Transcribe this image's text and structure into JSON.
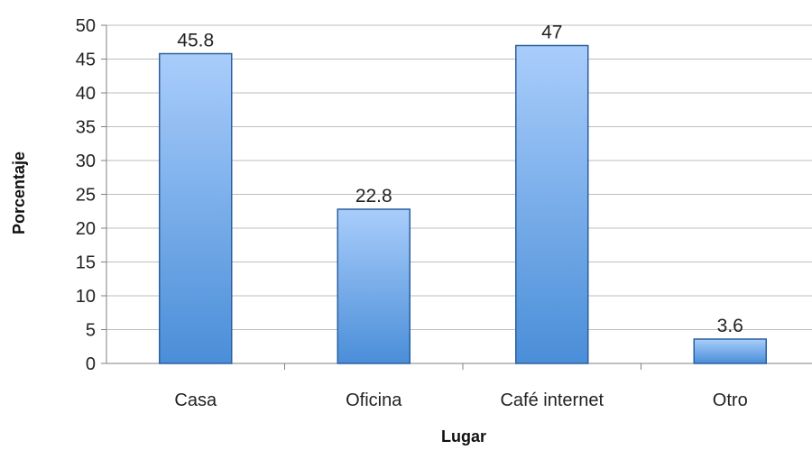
{
  "chart_data": {
    "type": "bar",
    "categories": [
      "Casa",
      "Oficina",
      "Café internet",
      "Otro"
    ],
    "values": [
      45.8,
      22.8,
      47,
      3.6
    ],
    "data_labels": [
      "45.8",
      "22.8",
      "47",
      "3.6"
    ],
    "xlabel": "Lugar",
    "ylabel": "Porcentaje",
    "ylim": [
      0,
      50
    ],
    "yticks": [
      "0",
      "5",
      "10",
      "15",
      "20",
      "25",
      "30",
      "35",
      "40",
      "45",
      "50"
    ],
    "grid": true,
    "legend": "none",
    "colors": {
      "bar_top": "#a9cdfb",
      "bar_bottom": "#4a8ed8",
      "bar_stroke": "#2c5f9e",
      "grid": "#bdbdbd",
      "axis": "#808080"
    }
  }
}
